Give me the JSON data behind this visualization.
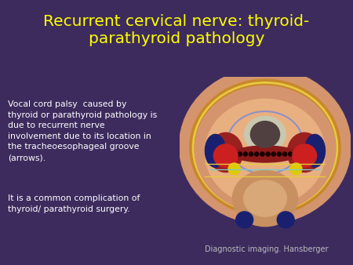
{
  "background_color": "#3d2b5e",
  "title_line1": "Recurrent cervical nerve: thyroid-",
  "title_line2": "parathyroid pathology",
  "title_color": "#ffff00",
  "title_fontsize": 14.5,
  "body_text_color": "#ffffff",
  "body_fontsize": 7.8,
  "body_para1": "Vocal cord palsy  caused by\nthyroid or parathyroid pathology is\ndue to recurrent nerve\ninvolvement due to its location in\nthe tracheoesophageal groove\n(arrows).",
  "body_para2": "It is a common complication of\nthyroid/ parathyroid surgery.",
  "caption_text": "Diagnostic imaging. Hansberger",
  "caption_color": "#bbbbbb",
  "caption_fontsize": 7
}
